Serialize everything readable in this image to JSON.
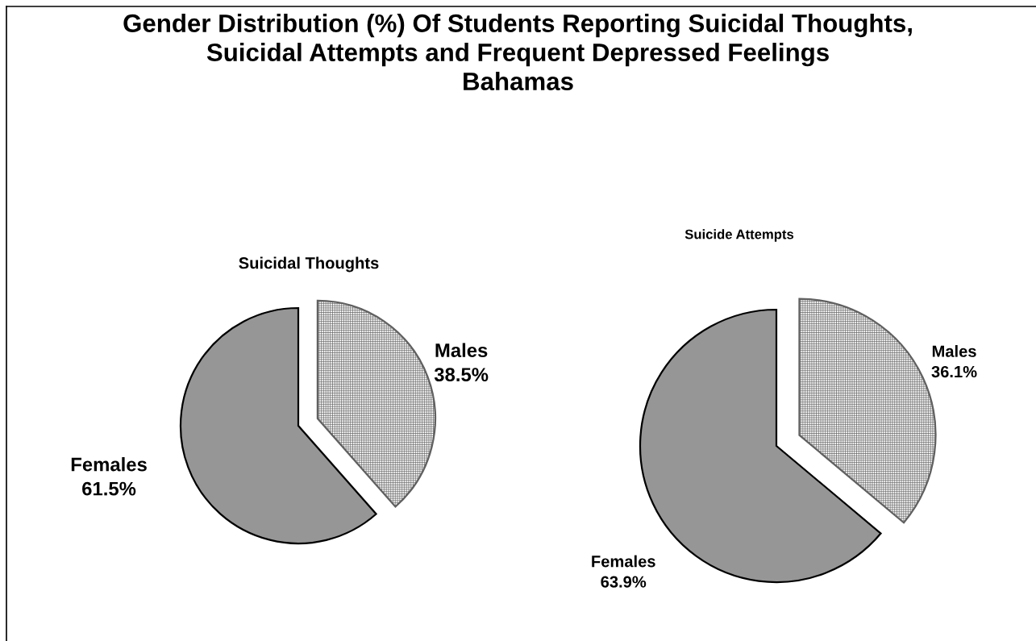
{
  "chart_data": [
    {
      "type": "other",
      "title": "Gender Distribution (%) Of Students Reporting Suicidal Thoughts,\nSuicidal Attempts and Frequent Depressed Feelings\nBahamas"
    },
    {
      "type": "pie",
      "title": "Suicidal Thoughts",
      "categories": [
        "Males",
        "Females"
      ],
      "values": [
        38.5,
        61.5
      ],
      "colors": [
        "#606060",
        "#969696"
      ],
      "value_labels": [
        "38.5%",
        "61.5%"
      ]
    },
    {
      "type": "pie",
      "title": "Suicide Attempts",
      "categories": [
        "Males",
        "Females"
      ],
      "values": [
        36.1,
        63.9
      ],
      "colors": [
        "#606060",
        "#969696"
      ],
      "value_labels": [
        "36.1%",
        "63.9%"
      ]
    }
  ]
}
